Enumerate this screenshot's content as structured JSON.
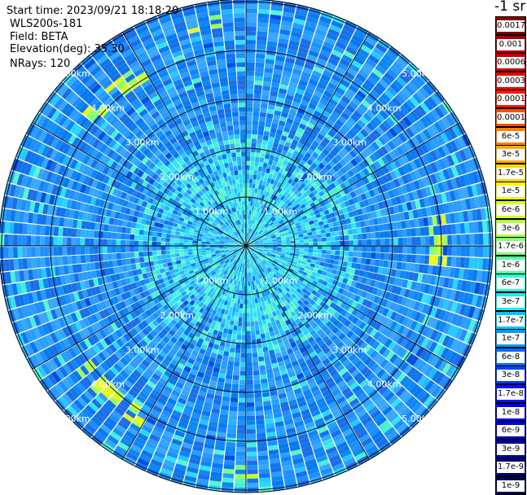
{
  "header": {
    "start_time": "Start time: 2023/09/21 18:18:20",
    "device": "WLS200s-181",
    "field": "Field: BETA",
    "elevation": "Elevation(deg): 35.30",
    "nrays": "NRays: 120",
    "unit": "-1 sr"
  },
  "chart_data": {
    "type": "heatmap",
    "projection": "polar-ppi",
    "rays": 120,
    "field": "BETA",
    "elevation_deg": 35.3,
    "max_range_km": 5.0,
    "range_ring_labels_km": [
      1.0,
      2.0,
      3.0,
      4.0,
      5.0
    ],
    "range_ring_labels": [
      "1.00km",
      "2.00km",
      "3.00km",
      "4.00km",
      "5.00km"
    ],
    "spokes_deg": [
      0,
      30,
      60,
      90,
      120,
      150,
      180,
      210,
      240,
      270,
      300,
      330
    ],
    "colorbar": {
      "scale": "log",
      "labels": [
        "0.0017",
        "0.001",
        "0.0006",
        "0.0003",
        "0.00017",
        "0.0001",
        "6e-5",
        "3e-5",
        "1.7e-5",
        "1e-5",
        "6e-6",
        "3e-6",
        "1.7e-6",
        "1e-6",
        "6e-7",
        "3e-7",
        "1.7e-7",
        "1e-7",
        "6e-8",
        "3e-8",
        "1.7e-8",
        "1e-8",
        "6e-9",
        "3e-9",
        "1.7e-9",
        "1e-9"
      ],
      "colors": [
        "#7e0000",
        "#a80000",
        "#cc0000",
        "#ee0000",
        "#ff1800",
        "#ff4d00",
        "#ff8000",
        "#ffaa00",
        "#ffd400",
        "#fff500",
        "#d9ff1e",
        "#adff4a",
        "#82ff76",
        "#57ffa2",
        "#2cffce",
        "#00f2ff",
        "#00c6ff",
        "#0099ff",
        "#006cff",
        "#0040ff",
        "#0014ff",
        "#0000f0",
        "#0000c8",
        "#0000a0",
        "#000078",
        "#000050"
      ]
    },
    "typical_values": {
      "inner_0_2km": "1e-7 to 1.7e-7",
      "outer_2_5km": "6e-8 to 1e-7",
      "high_patches": "6e-6 to 1e-5"
    }
  }
}
